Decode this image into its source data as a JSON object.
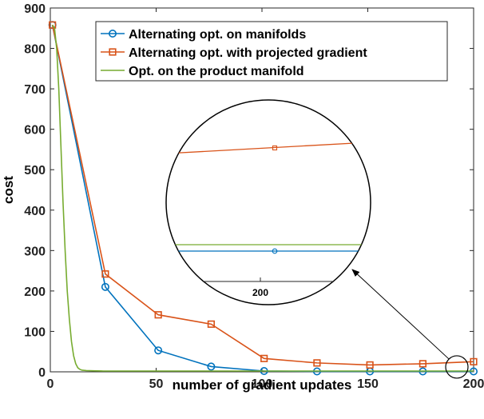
{
  "chart_data": {
    "type": "line",
    "title": "",
    "xlabel": "number of gradient updates",
    "ylabel": "cost",
    "xlim": [
      0,
      200
    ],
    "ylim": [
      0,
      900
    ],
    "xticks": [
      0,
      50,
      100,
      150,
      200
    ],
    "yticks": [
      0,
      100,
      200,
      300,
      400,
      500,
      600,
      700,
      800,
      900
    ],
    "grid": false,
    "legend_position": "top-right",
    "series": [
      {
        "name": "Alternating opt. on manifolds",
        "color": "#0072BD",
        "marker": "circle",
        "x": [
          1,
          26,
          51,
          76,
          101,
          126,
          151,
          176,
          200
        ],
        "y": [
          858,
          210,
          53,
          13,
          2,
          1,
          1,
          1,
          1
        ]
      },
      {
        "name": "Alternating opt. with projected gradient",
        "color": "#D95319",
        "marker": "square",
        "x": [
          1,
          26,
          51,
          76,
          101,
          126,
          151,
          176,
          200
        ],
        "y": [
          858,
          242,
          141,
          118,
          33,
          22,
          17,
          20,
          25
        ]
      },
      {
        "name": "Opt. on the product manifold",
        "color": "#77AC30",
        "marker": "none",
        "x": [
          1,
          2,
          3,
          4,
          5,
          6,
          7,
          8,
          9,
          10,
          11,
          12,
          13,
          14,
          15,
          17,
          20,
          25,
          30,
          40,
          60,
          80,
          100,
          120,
          140,
          160,
          180,
          200
        ],
        "y": [
          858,
          850,
          800,
          700,
          560,
          420,
          300,
          200,
          130,
          75,
          40,
          20,
          10,
          6,
          4,
          3,
          2.5,
          2,
          2,
          2,
          2,
          2,
          2,
          2,
          2,
          2,
          2,
          2
        ]
      }
    ],
    "inset": {
      "description_label": "200",
      "magnified_region_x": 200
    }
  }
}
